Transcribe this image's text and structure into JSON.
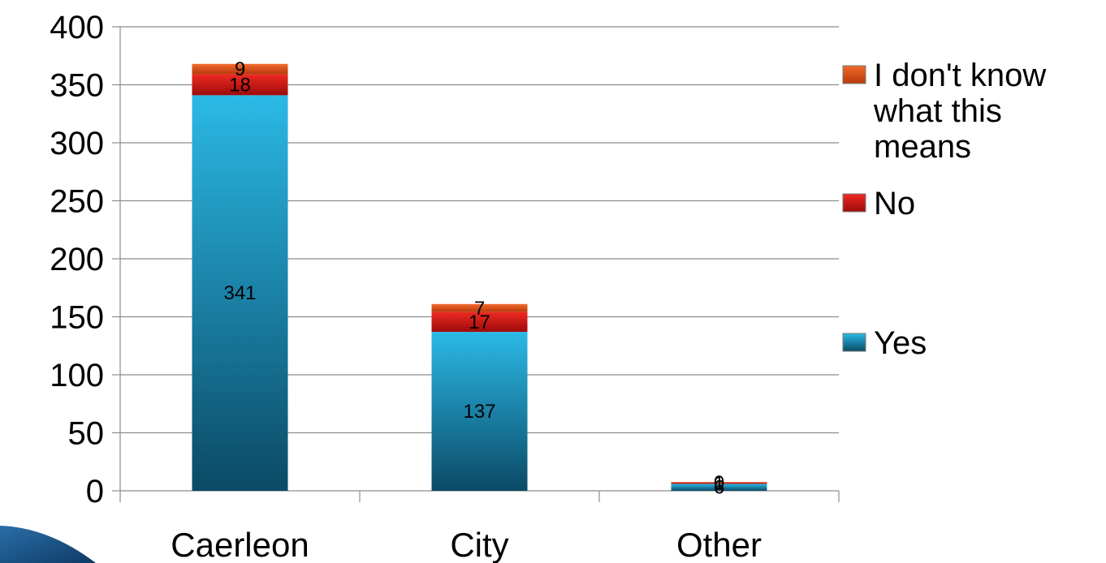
{
  "chart_data": {
    "type": "bar",
    "stacked": true,
    "categories": [
      "Caerleon",
      "City",
      "Other"
    ],
    "series": [
      {
        "name": "Yes",
        "values": [
          341,
          137,
          6
        ],
        "color": "#1a8fb8"
      },
      {
        "name": "No",
        "values": [
          18,
          17,
          1
        ],
        "color": "#d01818"
      },
      {
        "name": "I don't know what this means",
        "values": [
          9,
          7,
          0
        ],
        "color": "#e8501a"
      }
    ],
    "ylim": [
      0,
      400
    ],
    "yticks": [
      0,
      50,
      100,
      150,
      200,
      250,
      300,
      350,
      400
    ],
    "grid": true,
    "legend_placement": "right",
    "legend_order": [
      "I don't know what this means",
      "No",
      "Yes"
    ],
    "legend_lines": {
      "I don't know what this means": [
        "I don't know",
        "what this",
        "means"
      ],
      "No": [
        "No"
      ],
      "Yes": [
        "Yes"
      ]
    }
  }
}
